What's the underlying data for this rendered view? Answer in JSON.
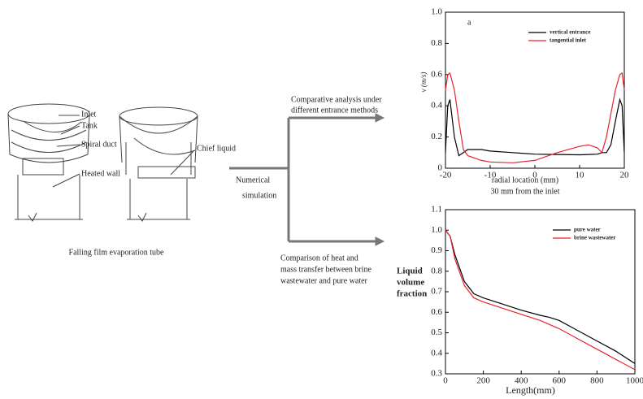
{
  "diagram": {
    "labels": {
      "inlet": "Inlet",
      "tank": "Tank",
      "spiral": "Spiral duct",
      "heated": "Heated wall",
      "chief": "Chief liquid"
    },
    "caption": "Falling film evaporation tube",
    "method": [
      "Numerical",
      "simulation"
    ],
    "branch_top": [
      "Comparative analysis under",
      "different entrance methods"
    ],
    "branch_bottom": [
      "Comparison of heat and",
      "mass transfer between brine",
      "wastewater and pure water"
    ]
  },
  "chart_data": [
    {
      "type": "line",
      "annotation": "a",
      "x_label": "radial location (mm)",
      "subtitle": "30 mm from the inlet",
      "y_label": "v (m/s)",
      "x": [
        -20,
        -19.5,
        -19,
        -18,
        -17,
        -16,
        -15,
        -12,
        -10,
        -5,
        0,
        5,
        10,
        12,
        14,
        15,
        16,
        17,
        18,
        19,
        19.5,
        20
      ],
      "series": [
        {
          "name": "vertical entrance",
          "color": "#000000",
          "values": [
            0.1,
            0.4,
            0.44,
            0.2,
            0.08,
            0.1,
            0.12,
            0.12,
            0.11,
            0.1,
            0.09,
            0.088,
            0.086,
            0.088,
            0.09,
            0.1,
            0.1,
            0.15,
            0.3,
            0.44,
            0.4,
            0.1
          ]
        },
        {
          "name": "tangential inlet",
          "color": "#e8242a",
          "values": [
            0.5,
            0.6,
            0.61,
            0.5,
            0.3,
            0.12,
            0.08,
            0.05,
            0.04,
            0.035,
            0.05,
            0.1,
            0.14,
            0.15,
            0.13,
            0.1,
            0.2,
            0.35,
            0.5,
            0.6,
            0.61,
            0.5
          ]
        }
      ],
      "xlim": [
        -20,
        20
      ],
      "xticks": [
        -20,
        -10,
        0,
        10,
        20
      ],
      "ylim": [
        0,
        1
      ],
      "yticks": [
        0,
        0.2,
        0.4,
        0.6,
        0.8,
        {
          "value": 1,
          "label": "1.0"
        }
      ]
    },
    {
      "type": "line",
      "x_label": "Length(mm)",
      "y_label": [
        "Liquid",
        "volume",
        "fraction"
      ],
      "x": [
        0,
        25,
        50,
        100,
        150,
        200,
        300,
        400,
        500,
        550,
        600,
        700,
        800,
        900,
        1000
      ],
      "series": [
        {
          "name": "pure water",
          "color": "#000000",
          "values": [
            1.0,
            0.97,
            0.88,
            0.75,
            0.69,
            0.67,
            0.64,
            0.61,
            0.585,
            0.575,
            0.56,
            0.51,
            0.46,
            0.41,
            0.35
          ]
        },
        {
          "name": "brine wastewater",
          "color": "#e8242a",
          "values": [
            1.0,
            0.97,
            0.86,
            0.73,
            0.67,
            0.65,
            0.62,
            0.59,
            0.56,
            0.54,
            0.52,
            0.47,
            0.42,
            0.37,
            0.32
          ]
        }
      ],
      "xlim": [
        0,
        1000
      ],
      "xticks": [
        0,
        200,
        400,
        600,
        800,
        1000
      ],
      "ylim": [
        0.3,
        1.1
      ],
      "yticks": [
        0.3,
        0.4,
        0.5,
        0.6,
        0.7,
        0.8,
        0.9,
        {
          "value": 1,
          "label": "1.0"
        },
        1.1
      ]
    }
  ]
}
